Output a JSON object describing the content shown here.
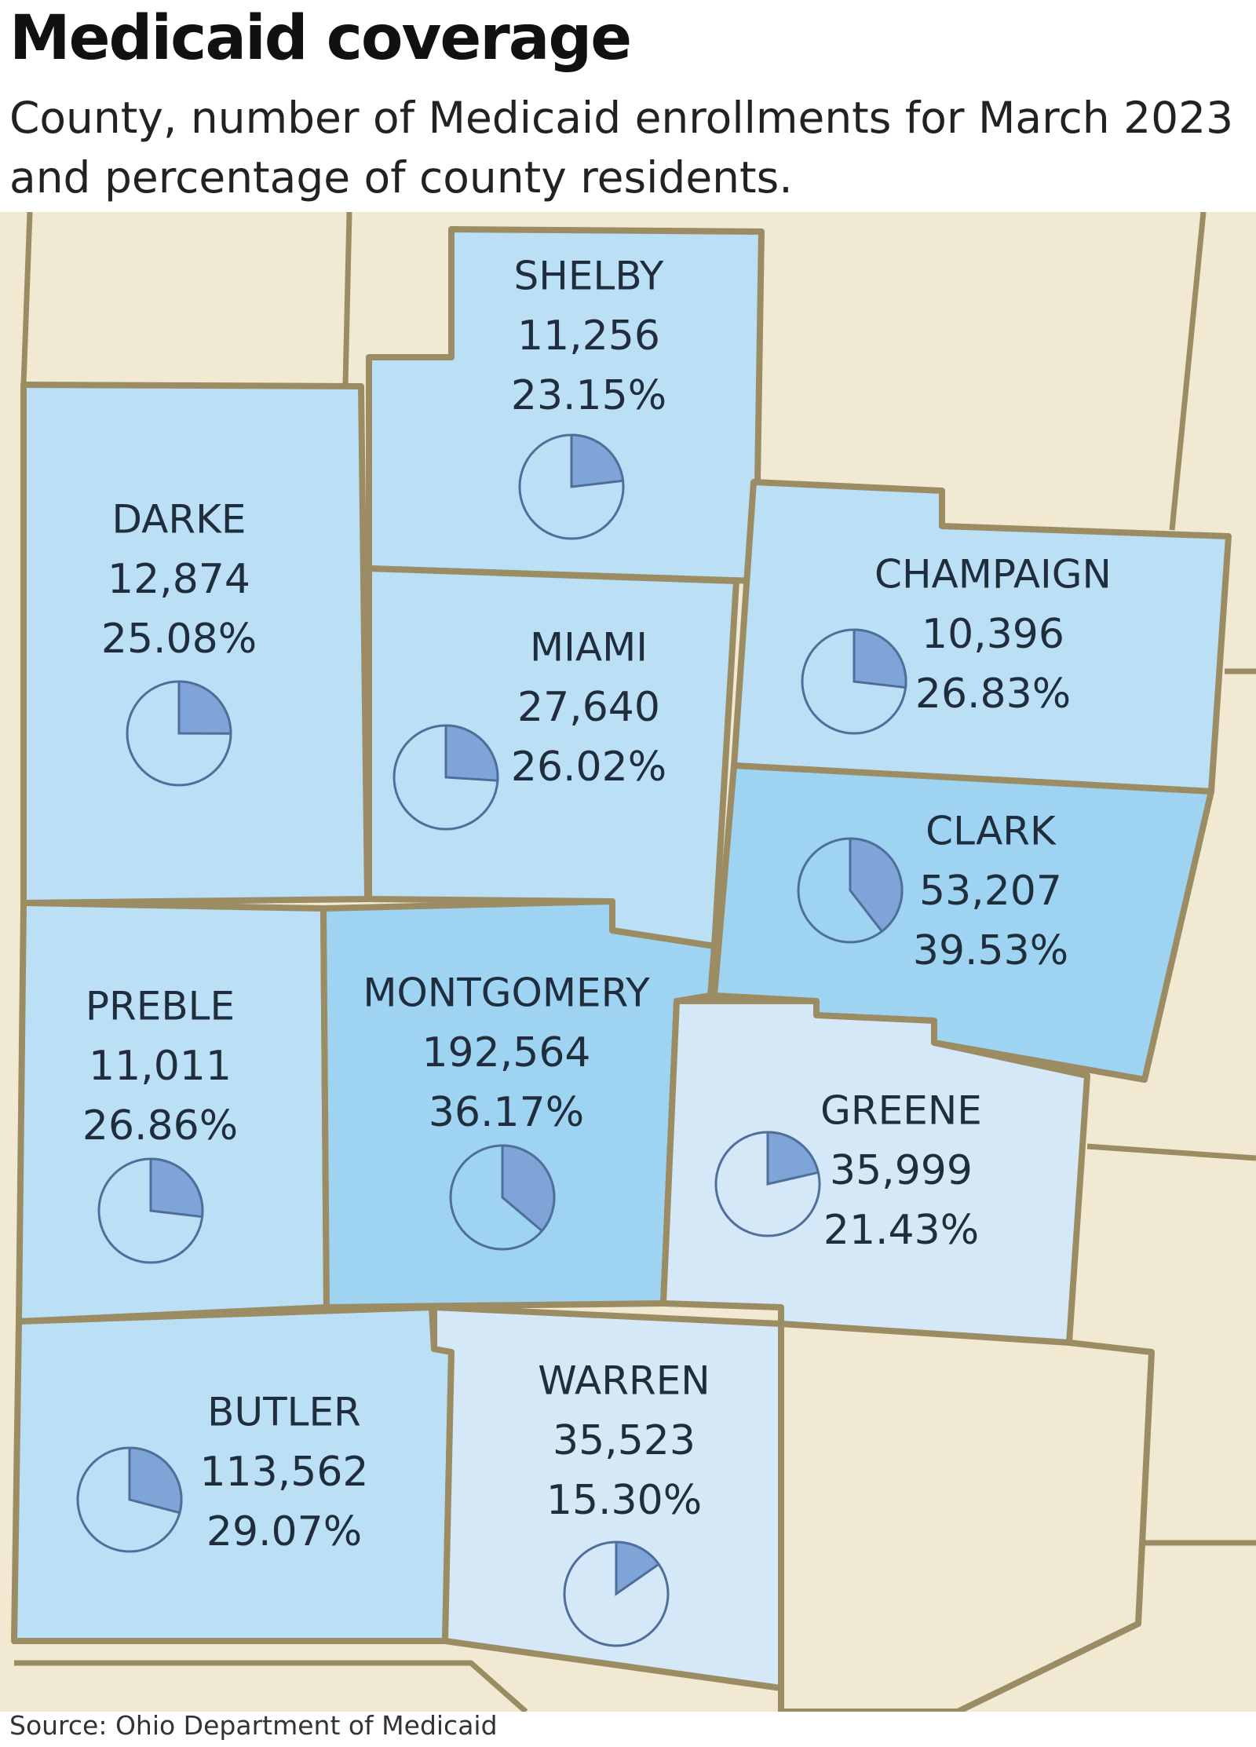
{
  "title": "Medicaid coverage",
  "subtitle": "County, number of Medicaid enrollments for March 2023 and percentage of county residents.",
  "source": "Source: Ohio Department of Medicaid",
  "colors": {
    "background_land": "#f1e9d2",
    "county_border": "#9c8c63",
    "pie_fill": "#7ea4d8",
    "pie_stroke": "#4f6f9a",
    "shades": {
      "light": "#d4e8f7",
      "medium": "#bbdff5",
      "dark": "#9ed3f1"
    }
  },
  "chart_data": {
    "type": "map",
    "counties": [
      {
        "key": "shelby",
        "name": "SHELBY",
        "enrollments": "11,256",
        "percent_label": "23.15%",
        "percent": 23.15
      },
      {
        "key": "darke",
        "name": "DARKE",
        "enrollments": "12,874",
        "percent_label": "25.08%",
        "percent": 25.08
      },
      {
        "key": "miami",
        "name": "MIAMI",
        "enrollments": "27,640",
        "percent_label": "26.02%",
        "percent": 26.02
      },
      {
        "key": "champaign",
        "name": "CHAMPAIGN",
        "enrollments": "10,396",
        "percent_label": "26.83%",
        "percent": 26.83
      },
      {
        "key": "clark",
        "name": "CLARK",
        "enrollments": "53,207",
        "percent_label": "39.53%",
        "percent": 39.53
      },
      {
        "key": "preble",
        "name": "PREBLE",
        "enrollments": "11,011",
        "percent_label": "26.86%",
        "percent": 26.86
      },
      {
        "key": "montgomery",
        "name": "MONTGOMERY",
        "enrollments": "192,564",
        "percent_label": "36.17%",
        "percent": 36.17
      },
      {
        "key": "greene",
        "name": "GREENE",
        "enrollments": "35,999",
        "percent_label": "21.43%",
        "percent": 21.43
      },
      {
        "key": "butler",
        "name": "BUTLER",
        "enrollments": "113,562",
        "percent_label": "29.07%",
        "percent": 29.07
      },
      {
        "key": "warren",
        "name": "WARREN",
        "enrollments": "35,523",
        "percent_label": "15.30%",
        "percent": 15.3
      }
    ]
  }
}
